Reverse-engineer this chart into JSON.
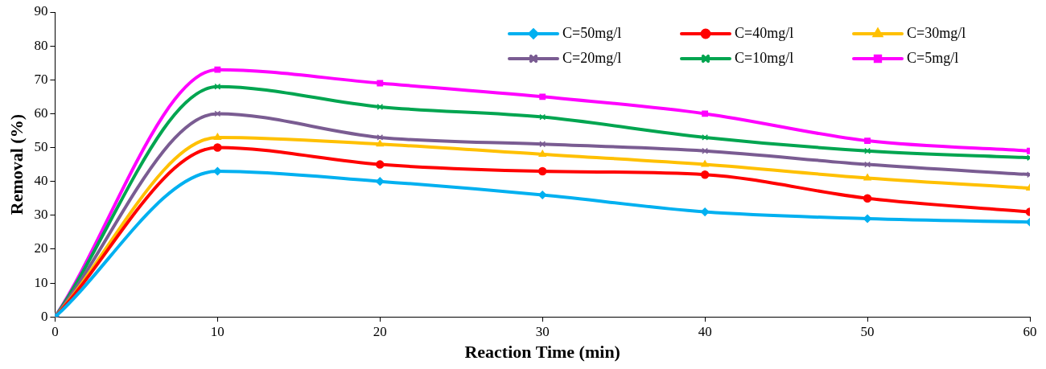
{
  "chart_data": {
    "type": "line",
    "xlabel": "Reaction Time (min)",
    "ylabel": "Removal (%)",
    "x": [
      0,
      10,
      20,
      30,
      40,
      50,
      60
    ],
    "series": [
      {
        "name": "C=50mg/l",
        "color": "#00b0f0",
        "marker": "diamond",
        "values": [
          0,
          43,
          40,
          36,
          31,
          29,
          28
        ]
      },
      {
        "name": "C=40mg/l",
        "color": "#ff0000",
        "marker": "circle",
        "values": [
          0,
          50,
          45,
          43,
          42,
          35,
          31
        ]
      },
      {
        "name": "C=30mg/l",
        "color": "#ffc000",
        "marker": "triangle",
        "values": [
          0,
          53,
          51,
          48,
          45,
          41,
          38
        ]
      },
      {
        "name": "C=20mg/l",
        "color": "#7a5c92",
        "marker": "cross",
        "values": [
          0,
          60,
          53,
          51,
          49,
          45,
          42
        ]
      },
      {
        "name": "C=10mg/l",
        "color": "#00a550",
        "marker": "cross",
        "values": [
          0,
          68,
          62,
          59,
          53,
          49,
          47
        ]
      },
      {
        "name": "C=5mg/l",
        "color": "#ff00ff",
        "marker": "square",
        "values": [
          0,
          73,
          69,
          65,
          60,
          52,
          49
        ]
      }
    ],
    "xlim": [
      0,
      60
    ],
    "xticks": [
      0,
      10,
      20,
      30,
      40,
      50,
      60
    ],
    "ylim": [
      0,
      90
    ],
    "yticks": [
      0,
      10,
      20,
      30,
      40,
      50,
      60,
      70,
      80,
      90
    ],
    "grid": false,
    "legend": "top right",
    "line_style": "solid"
  }
}
